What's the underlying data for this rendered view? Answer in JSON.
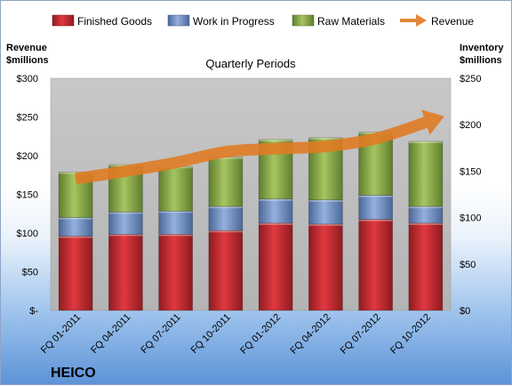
{
  "chart_data": {
    "type": "bar",
    "stacked": true,
    "title": "Quarterly Periods",
    "company": "HEICO",
    "categories": [
      "FQ 01-2011",
      "FQ 04-2011",
      "FQ 07-2011",
      "FQ 10-2011",
      "FQ 01-2012",
      "FQ 04-2012",
      "FQ 07-2012",
      "FQ 10-2012"
    ],
    "series": [
      {
        "name": "Finished Goods",
        "axis": "right",
        "color": "#c0272d",
        "values": [
          80,
          82,
          82,
          86,
          94,
          93,
          98,
          94
        ]
      },
      {
        "name": "Work in Progress",
        "axis": "right",
        "color": "#6f8fc4",
        "values": [
          20,
          24,
          25,
          26,
          26,
          26,
          26,
          18
        ]
      },
      {
        "name": "Raw Materials",
        "axis": "right",
        "color": "#8aab46",
        "values": [
          49,
          51,
          48,
          53,
          64,
          67,
          68,
          70
        ]
      },
      {
        "name": "Revenue",
        "type": "line",
        "axis": "left",
        "color": "#e07b23",
        "values": [
          170,
          180,
          191,
          205,
          209,
          212,
          222,
          243
        ]
      }
    ],
    "y_left": {
      "label_line1": "Revenue",
      "label_line2": "$millions",
      "ylim": [
        0,
        300
      ],
      "ticks": [
        0,
        50,
        100,
        150,
        200,
        250,
        300
      ],
      "tick_labels": [
        "$-",
        "$50",
        "$100",
        "$150",
        "$200",
        "$250",
        "$300"
      ]
    },
    "y_right": {
      "label_line1": "Inventory",
      "label_line2": "$millions",
      "ylim": [
        0,
        250
      ],
      "ticks": [
        0,
        50,
        100,
        150,
        200,
        250
      ],
      "tick_labels": [
        "$0",
        "$50",
        "$100",
        "$150",
        "$200",
        "$250"
      ]
    },
    "legend_position": "top",
    "grid": false
  }
}
